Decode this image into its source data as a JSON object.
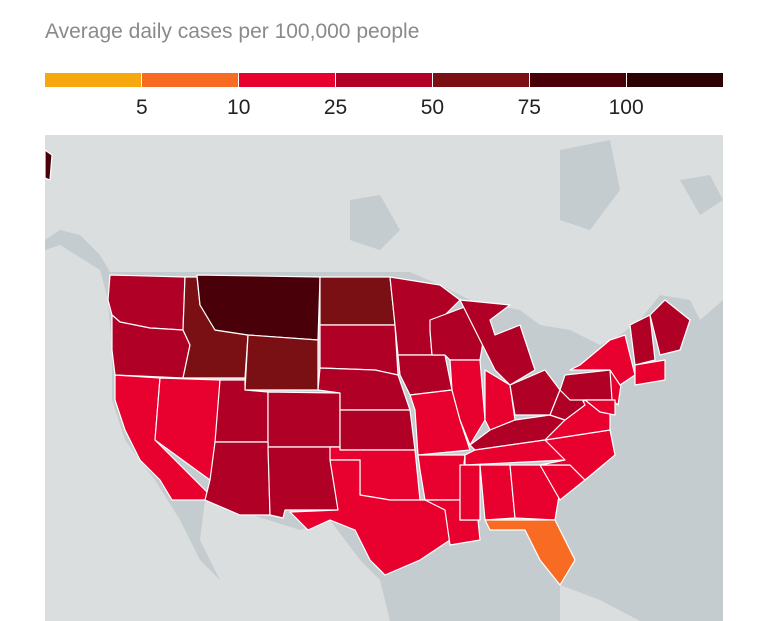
{
  "title": "Average daily cases per 100,000 people",
  "legend": {
    "bins": [
      {
        "color": "#f5a90f"
      },
      {
        "color": "#f86b22",
        "label": "5"
      },
      {
        "color": "#e8002e",
        "label": "10"
      },
      {
        "color": "#b00026",
        "label": "25"
      },
      {
        "color": "#7a1013",
        "label": "50"
      },
      {
        "color": "#4a0008",
        "label": "75"
      },
      {
        "color": "#2d0004",
        "label": "100"
      }
    ]
  },
  "map": {
    "water_color": "#c5cccf",
    "land_color": "#dadedf",
    "state_bins": {
      "WA": 3,
      "OR": 3,
      "CA": 2,
      "NV": 2,
      "ID": 4,
      "MT": 5,
      "WY": 4,
      "UT": 3,
      "AZ": 3,
      "CO": 3,
      "NM": 3,
      "ND": 4,
      "SD": 3,
      "NE": 3,
      "KS": 3,
      "OK": 2,
      "TX": 2,
      "MN": 3,
      "IA": 3,
      "MO": 2,
      "AR": 2,
      "LA": 2,
      "WI": 3,
      "IL": 2,
      "MI": 3,
      "IN": 2,
      "OH": 3,
      "KY": 3,
      "TN": 2,
      "MS": 2,
      "AL": 2,
      "GA": 2,
      "FL": 1,
      "SC": 2,
      "NC": 2,
      "VA": 2,
      "WV": 3,
      "PA": 3,
      "NY": 2,
      "NJ": 2,
      "MD": 2,
      "VTNH": 3,
      "ME": 3,
      "SNE": 2,
      "AK": 5
    }
  }
}
